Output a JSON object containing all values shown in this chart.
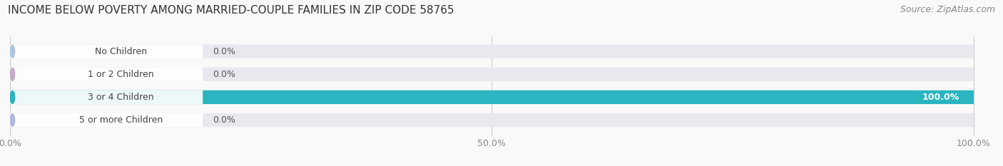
{
  "title": "INCOME BELOW POVERTY AMONG MARRIED-COUPLE FAMILIES IN ZIP CODE 58765",
  "source": "Source: ZipAtlas.com",
  "categories": [
    "No Children",
    "1 or 2 Children",
    "3 or 4 Children",
    "5 or more Children"
  ],
  "values": [
    0.0,
    0.0,
    100.0,
    0.0
  ],
  "bar_colors": [
    "#adc6e0",
    "#c4aac8",
    "#2ab5c0",
    "#b0b8e0"
  ],
  "bar_bg_color": "#e8e8ee",
  "xlim": [
    0,
    100
  ],
  "xticks": [
    0.0,
    50.0,
    100.0
  ],
  "xtick_labels": [
    "0.0%",
    "50.0%",
    "100.0%"
  ],
  "title_fontsize": 11,
  "source_fontsize": 9,
  "tick_fontsize": 9,
  "label_fontsize": 9,
  "value_fontsize": 9,
  "bar_height": 0.6,
  "figsize": [
    14.06,
    2.33
  ],
  "dpi": 100,
  "background_color": "#f9f9f9"
}
